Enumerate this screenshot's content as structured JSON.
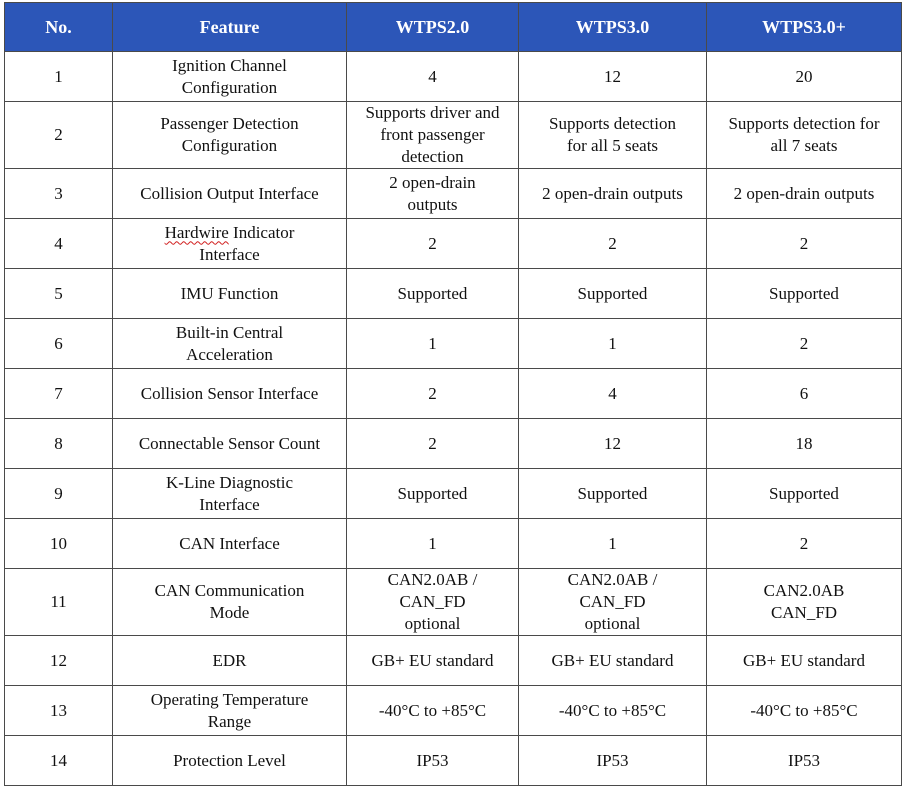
{
  "table": {
    "headers": [
      "No.",
      "Feature",
      "WTPS2.0",
      "WTPS3.0",
      "WTPS3.0+"
    ],
    "rows": [
      {
        "no": "1",
        "feature": "Ignition Channel\nConfiguration",
        "wtps20": "4",
        "wtps30": "12",
        "wtps30plus": "20"
      },
      {
        "no": "2",
        "feature": "Passenger Detection\nConfiguration",
        "wtps20": "Supports driver and\nfront passenger\ndetection",
        "wtps30": "Supports detection\nfor all 5 seats",
        "wtps30plus": "Supports detection for\nall 7 seats"
      },
      {
        "no": "3",
        "feature": "Collision Output Interface",
        "wtps20": "2 open-drain\noutputs",
        "wtps30": "2 open-drain outputs",
        "wtps30plus": "2 open-drain outputs"
      },
      {
        "no": "4",
        "feature_prefix": "Hardwire",
        "feature_suffix": " Indicator\nInterface",
        "wtps20": "2",
        "wtps30": "2",
        "wtps30plus": "2"
      },
      {
        "no": "5",
        "feature": "IMU Function",
        "wtps20": "Supported",
        "wtps30": "Supported",
        "wtps30plus": "Supported"
      },
      {
        "no": "6",
        "feature": "Built-in Central\nAcceleration",
        "wtps20": "1",
        "wtps30": "1",
        "wtps30plus": "2"
      },
      {
        "no": "7",
        "feature": "Collision Sensor Interface",
        "wtps20": "2",
        "wtps30": "4",
        "wtps30plus": "6"
      },
      {
        "no": "8",
        "feature": "Connectable Sensor Count",
        "wtps20": "2",
        "wtps30": "12",
        "wtps30plus": "18"
      },
      {
        "no": "9",
        "feature": "K-Line Diagnostic\nInterface",
        "wtps20": "Supported",
        "wtps30": "Supported",
        "wtps30plus": "Supported"
      },
      {
        "no": "10",
        "feature": "CAN Interface",
        "wtps20": "1",
        "wtps30": "1",
        "wtps30plus": "2"
      },
      {
        "no": "11",
        "feature": "CAN Communication\nMode",
        "wtps20": "CAN2.0AB /\nCAN_FD\noptional",
        "wtps30": "CAN2.0AB /\nCAN_FD\noptional",
        "wtps30plus": "CAN2.0AB\nCAN_FD"
      },
      {
        "no": "12",
        "feature": "EDR",
        "wtps20": "GB+ EU standard",
        "wtps30": "GB+ EU standard",
        "wtps30plus": "GB+ EU standard"
      },
      {
        "no": "13",
        "feature": "Operating Temperature\nRange",
        "wtps20": "-40°C to +85°C",
        "wtps30": "-40°C to +85°C",
        "wtps30plus": "-40°C to +85°C"
      },
      {
        "no": "14",
        "feature": "Protection Level",
        "wtps20": "IP53",
        "wtps30": "IP53",
        "wtps30plus": "IP53"
      }
    ]
  },
  "colors": {
    "header_background": "#2c56b8",
    "header_text": "#ffffff",
    "grid": "#4a4a4a"
  }
}
